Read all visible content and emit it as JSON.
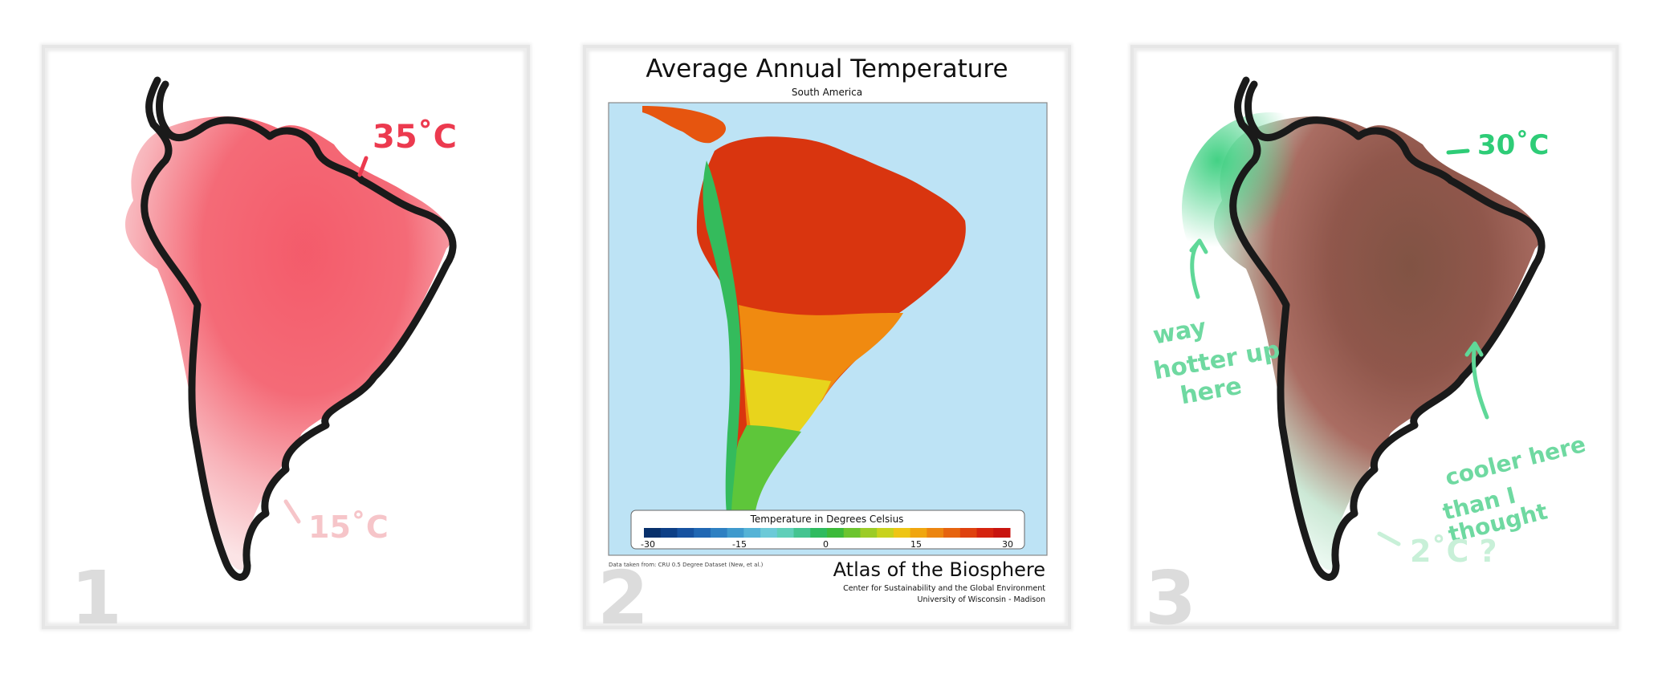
{
  "panel1": {
    "number": "1",
    "label_hot": "35˚C",
    "label_cool": "15˚C",
    "colors": {
      "hot": "#f2495a",
      "cool": "#f6c5c9",
      "outline": "#1a1a1a"
    }
  },
  "panel2": {
    "number": "2",
    "title": "Average Annual Temperature",
    "subtitle": "South America",
    "legend": {
      "title": "Temperature in Degrees Celsius",
      "ticks": [
        "-30",
        "-15",
        "0",
        "15",
        "30"
      ],
      "colors": [
        "#08306b",
        "#0d3f86",
        "#1652a0",
        "#2067b3",
        "#2e80c2",
        "#3f9acd",
        "#55b3d6",
        "#6ccad8",
        "#5fcfb9",
        "#44c490",
        "#2fbb5f",
        "#3cba3a",
        "#6cc42f",
        "#9ccc26",
        "#c8d21d",
        "#eec514",
        "#f0a60f",
        "#ec8510",
        "#e6640f",
        "#df420f",
        "#d5240f",
        "#c8140f"
      ]
    },
    "source_note": "Data taken from: CRU 0.5 Degree Dataset (New, et al.)",
    "atlas_title": "Atlas of the Biosphere",
    "atlas_line1": "Center for Sustainability and the Global Environment",
    "atlas_line2": "University of Wisconsin - Madison",
    "colors": {
      "ocean": "#bde3f5",
      "hot": "#d9350f",
      "warm": "#f08a10",
      "mild": "#e8d41c",
      "cool": "#5ec63a",
      "cold": "#2eb85c"
    }
  },
  "panel3": {
    "number": "3",
    "label_hot": "30˚C",
    "note_north_1": "way",
    "note_north_2": "hotter up",
    "note_north_3": "here",
    "note_east_1": "cooler here",
    "note_east_2": "than I thought",
    "label_cold": "2˚C ?",
    "colors": {
      "hot": "#8a4a3c",
      "green": "#2ecc77",
      "pale_green": "#bfeed4"
    }
  }
}
